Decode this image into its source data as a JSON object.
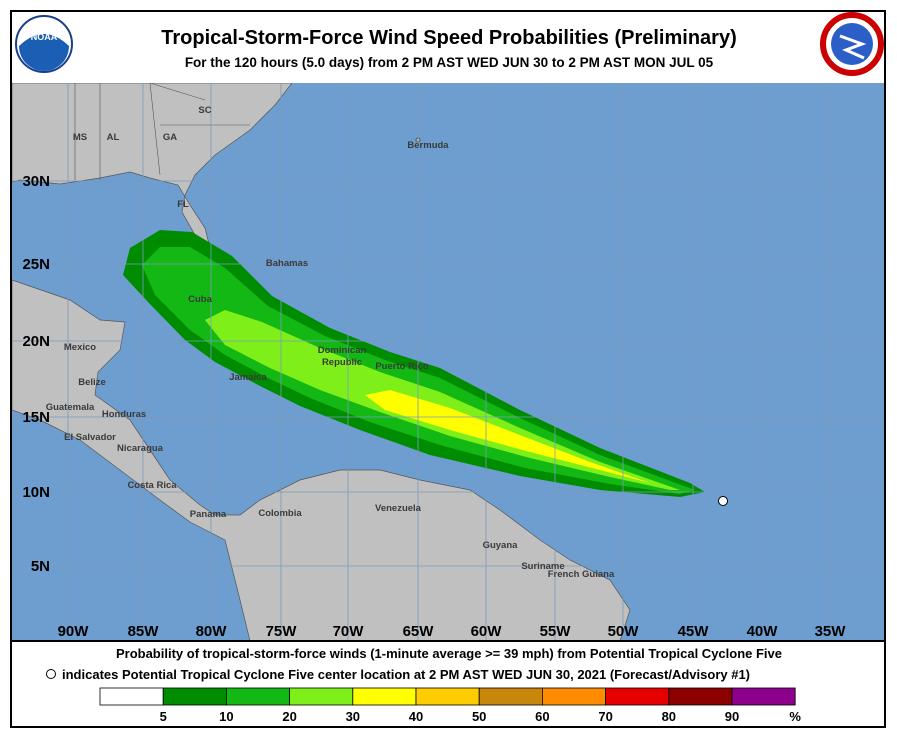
{
  "header": {
    "title": "Tropical-Storm-Force Wind Speed Probabilities (Preliminary)",
    "subtitle": "For the 120 hours (5.0 days) from 2 PM AST WED JUN 30 to 2 PM AST MON JUL 05",
    "logo_left": "NOAA"
  },
  "map": {
    "lat_labels": [
      "30N",
      "25N",
      "20N",
      "15N",
      "10N",
      "5N"
    ],
    "lon_labels": [
      "90W",
      "85W",
      "80W",
      "75W",
      "70W",
      "65W",
      "60W",
      "55W",
      "50W",
      "45W",
      "40W",
      "35W"
    ],
    "places": [
      "MS",
      "AL",
      "GA",
      "SC",
      "FL",
      "Bermuda",
      "Bahamas",
      "Cuba",
      "Mexico",
      "Belize",
      "Guatemala",
      "Honduras",
      "El Salvador",
      "Nicaragua",
      "Costa Rica",
      "Panama",
      "Colombia",
      "Venezuela",
      "Guyana",
      "Suriname",
      "French Guiana",
      "Jamaica",
      "Dominican",
      "Republic",
      "Puerto Rico"
    ]
  },
  "footer": {
    "line1": "Probability of tropical-storm-force winds (1-minute average >= 39 mph) from Potential Tropical Cyclone Five",
    "line2": "indicates Potential Tropical Cyclone Five center location at 2 PM AST WED JUN 30, 2021 (Forecast/Advisory #1)"
  },
  "legend": {
    "colors": [
      "#ffffff",
      "#008c00",
      "#14b814",
      "#7fef1a",
      "#ffff00",
      "#ffcc00",
      "#c8860a",
      "#ff8c00",
      "#e60000",
      "#8c0000",
      "#8c008c"
    ],
    "labels": [
      "5",
      "10",
      "20",
      "30",
      "40",
      "50",
      "60",
      "70",
      "80",
      "90",
      "%"
    ]
  }
}
